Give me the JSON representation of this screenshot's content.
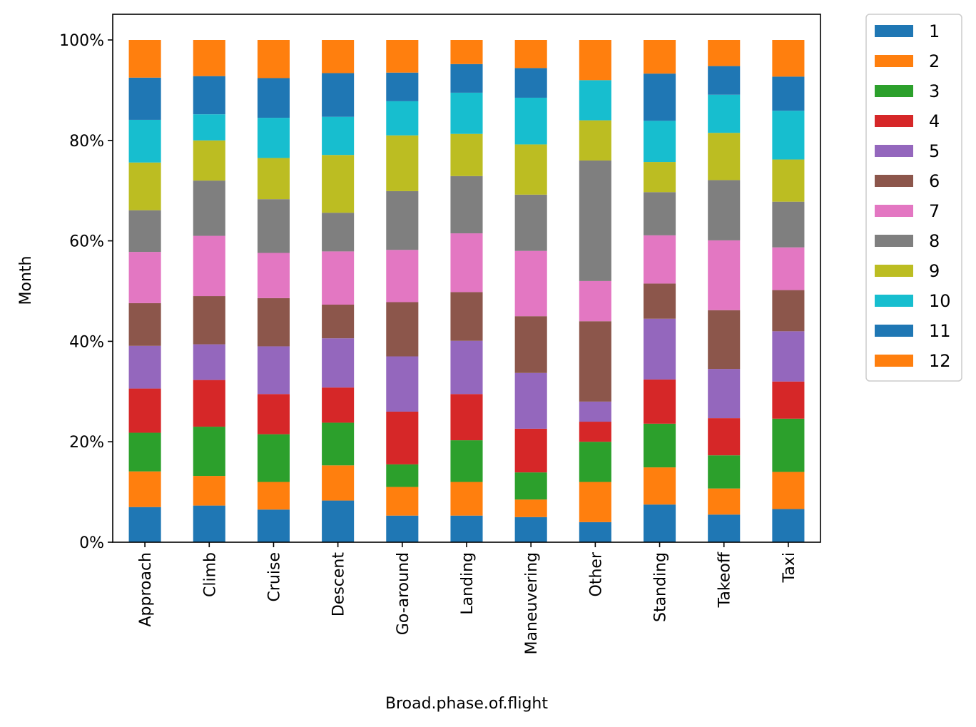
{
  "chart_data": {
    "type": "bar",
    "stacked": true,
    "normalized": true,
    "xlabel": "Broad.phase.of.flight",
    "ylabel": "Month",
    "ylim": [
      0,
      1.05
    ],
    "yticks": [
      0,
      0.2,
      0.4,
      0.6,
      0.8,
      1.0
    ],
    "ytick_labels": [
      "0%",
      "20%",
      "40%",
      "60%",
      "80%",
      "100%"
    ],
    "legend_position": "outside-right-top",
    "categories": [
      "Approach",
      "Climb",
      "Cruise",
      "Descent",
      "Go-around",
      "Landing",
      "Maneuvering",
      "Other",
      "Standing",
      "Takeoff",
      "Taxi"
    ],
    "series": [
      {
        "name": "1",
        "color": "#1f77b4",
        "values": [
          0.07,
          0.073,
          0.065,
          0.083,
          0.053,
          0.053,
          0.05,
          0.04,
          0.075,
          0.055,
          0.066
        ]
      },
      {
        "name": "2",
        "color": "#ff7f0e",
        "values": [
          0.071,
          0.059,
          0.055,
          0.07,
          0.057,
          0.067,
          0.035,
          0.08,
          0.074,
          0.052,
          0.074
        ]
      },
      {
        "name": "3",
        "color": "#2ca02c",
        "values": [
          0.077,
          0.098,
          0.095,
          0.085,
          0.045,
          0.083,
          0.054,
          0.08,
          0.087,
          0.066,
          0.106
        ]
      },
      {
        "name": "4",
        "color": "#d62728",
        "values": [
          0.088,
          0.093,
          0.08,
          0.07,
          0.105,
          0.092,
          0.087,
          0.04,
          0.088,
          0.074,
          0.074
        ]
      },
      {
        "name": "5",
        "color": "#9467bd",
        "values": [
          0.085,
          0.071,
          0.095,
          0.098,
          0.11,
          0.106,
          0.111,
          0.04,
          0.121,
          0.098,
          0.1
        ]
      },
      {
        "name": "6",
        "color": "#8c564b",
        "values": [
          0.085,
          0.096,
          0.096,
          0.067,
          0.108,
          0.097,
          0.113,
          0.16,
          0.07,
          0.117,
          0.082
        ]
      },
      {
        "name": "7",
        "color": "#e377c2",
        "values": [
          0.102,
          0.12,
          0.09,
          0.106,
          0.104,
          0.117,
          0.13,
          0.08,
          0.096,
          0.139,
          0.085
        ]
      },
      {
        "name": "8",
        "color": "#7f7f7f",
        "values": [
          0.083,
          0.11,
          0.107,
          0.077,
          0.117,
          0.114,
          0.112,
          0.24,
          0.086,
          0.12,
          0.091
        ]
      },
      {
        "name": "9",
        "color": "#bcbd22",
        "values": [
          0.095,
          0.08,
          0.082,
          0.115,
          0.111,
          0.084,
          0.1,
          0.08,
          0.06,
          0.094,
          0.084
        ]
      },
      {
        "name": "10",
        "color": "#17becf",
        "values": [
          0.085,
          0.052,
          0.08,
          0.076,
          0.068,
          0.082,
          0.093,
          0.08,
          0.082,
          0.076,
          0.097
        ]
      },
      {
        "name": "11",
        "color": "#1f77b4",
        "values": [
          0.084,
          0.076,
          0.079,
          0.087,
          0.057,
          0.057,
          0.059,
          0.0,
          0.094,
          0.057,
          0.068
        ]
      },
      {
        "name": "12",
        "color": "#ff7f0e",
        "values": [
          0.075,
          0.072,
          0.076,
          0.066,
          0.065,
          0.048,
          0.056,
          0.08,
          0.067,
          0.052,
          0.073
        ]
      }
    ]
  }
}
